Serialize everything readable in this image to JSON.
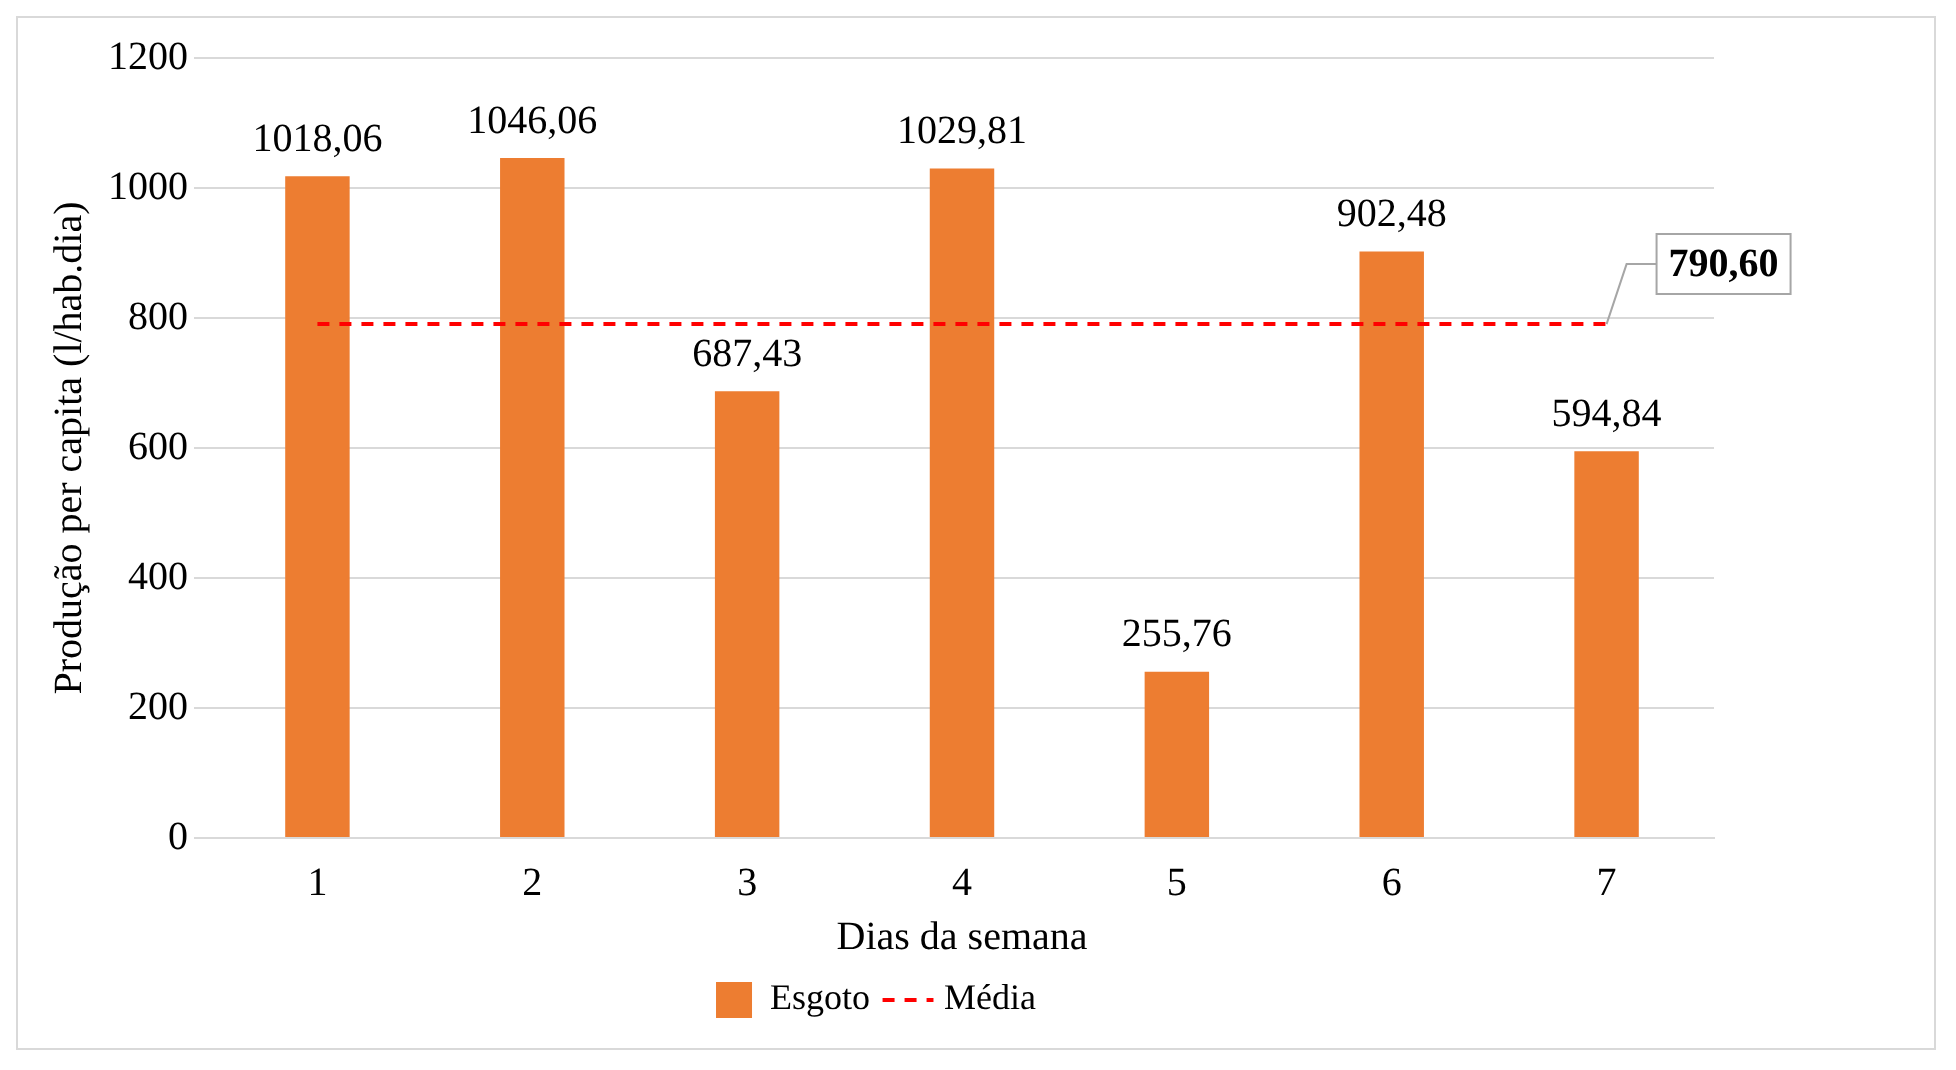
{
  "chart_data": {
    "type": "bar",
    "xlabel": "Dias da semana",
    "ylabel": "Produção per capita (l/hab.dia)",
    "categories": [
      "1",
      "2",
      "3",
      "4",
      "5",
      "6",
      "7"
    ],
    "series": [
      {
        "name": "Esgoto",
        "color": "#ed7d31",
        "values": [
          1018.06,
          1046.06,
          687.43,
          1029.81,
          255.76,
          902.48,
          594.84
        ],
        "value_labels": [
          "1018,06",
          "1046,06",
          "687,43",
          "1029,81",
          "255,76",
          "902,48",
          "594,84"
        ]
      },
      {
        "name": "Média",
        "type": "line",
        "color": "#ff0000",
        "line_style": "dashed",
        "marker": "none",
        "values": [
          790.6,
          790.6,
          790.6,
          790.6,
          790.6,
          790.6,
          790.6
        ],
        "value_labels": [
          null,
          null,
          null,
          null,
          null,
          null,
          "790,60"
        ]
      }
    ],
    "ylim": [
      0,
      1200
    ],
    "yticks": [
      0,
      200,
      400,
      600,
      800,
      1000,
      1200
    ],
    "grid": "y",
    "legend": "bottom"
  }
}
